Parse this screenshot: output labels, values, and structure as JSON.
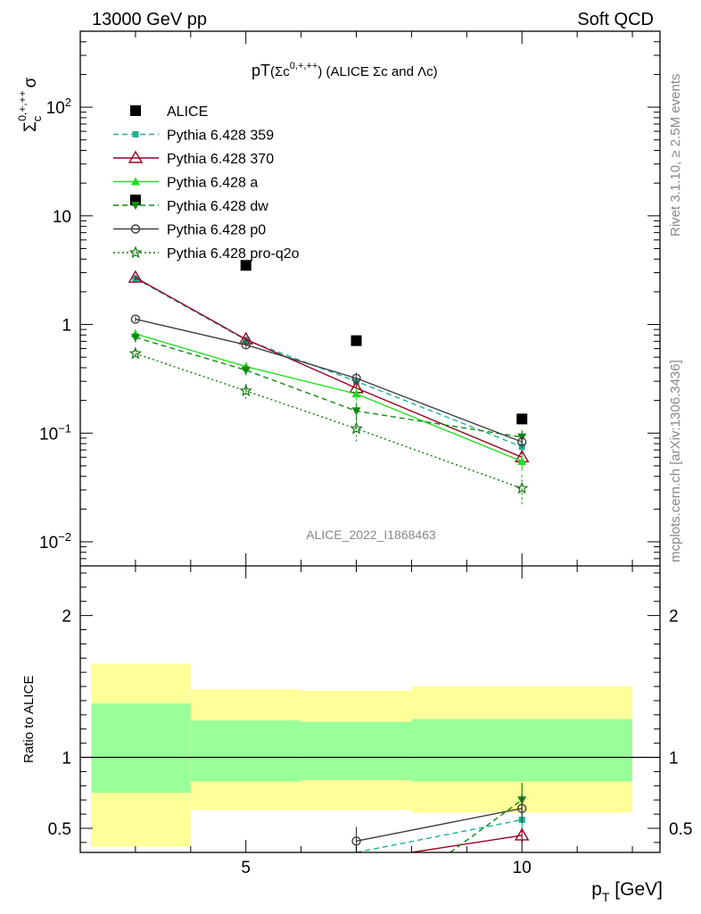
{
  "header": {
    "left": "13000 GeV pp",
    "right": "Soft QCD"
  },
  "side_labels": {
    "rivet": "Rivet 3.1.10, ≥ 2.5M events",
    "mcplots": "mcplots.cern.ch [arXiv:1306.3436]"
  },
  "chart_data": [
    {
      "type": "line",
      "title": "pT(Σc⁰¸⁺¸⁺⁺) (ALICE Σc and Λc)",
      "title_parts": {
        "main": "pT",
        "paren": "(Σc",
        "sup": "0,+,++",
        "rest": ") (ALICE Σc and Λc)"
      },
      "watermark": "ALICE_2022_I1868463",
      "ylabel": "Σc^{0,+,++} σ",
      "ylabel_parts": {
        "sym": "Σ",
        "sub": "c",
        "sup": "0,+,++",
        "post": "σ"
      },
      "xlabel": "",
      "yscale": "log",
      "xlim": [
        2,
        12.5
      ],
      "ylim": [
        0.006,
        500
      ],
      "yticks": [
        {
          "v": 0.01,
          "base": "10",
          "exp": "−2"
        },
        {
          "v": 0.1,
          "base": "10",
          "exp": "−1"
        },
        {
          "v": 1,
          "base": "1",
          "exp": ""
        },
        {
          "v": 10,
          "base": "10",
          "exp": ""
        },
        {
          "v": 100,
          "base": "10",
          "exp": "2"
        }
      ],
      "legend_position": "top-left",
      "series": [
        {
          "name": "ALICE",
          "color": "#000000",
          "marker": "square",
          "line": "none",
          "x": [
            3,
            5,
            7,
            10
          ],
          "y": [
            14,
            3.5,
            0.71,
            0.135
          ]
        },
        {
          "name": "Pythia 6.428 359",
          "color": "#1ab394",
          "marker": "small-square",
          "line": "dashed",
          "x": [
            3,
            5,
            7,
            10
          ],
          "y": [
            2.65,
            0.72,
            0.3,
            0.075
          ],
          "err": [
            0.15,
            0.04,
            0.03,
            0.01
          ]
        },
        {
          "name": "Pythia 6.428 370",
          "color": "#990022",
          "marker": "open-triangle",
          "line": "solid",
          "x": [
            3,
            5,
            7,
            10
          ],
          "y": [
            2.7,
            0.73,
            0.26,
            0.06
          ],
          "err": [
            0.15,
            0.04,
            0.03,
            0.01
          ]
        },
        {
          "name": "Pythia 6.428 a",
          "color": "#22dd22",
          "marker": "triangle",
          "line": "solid",
          "x": [
            3,
            5,
            7,
            10
          ],
          "y": [
            0.82,
            0.41,
            0.23,
            0.055
          ],
          "err": [
            0.08,
            0.04,
            0.03,
            0.01
          ]
        },
        {
          "name": "Pythia 6.428 dw",
          "color": "#118811",
          "marker": "down-triangle",
          "line": "dashed",
          "x": [
            3,
            5,
            7,
            10
          ],
          "y": [
            0.76,
            0.38,
            0.16,
            0.092
          ],
          "err": [
            0.08,
            0.04,
            0.03,
            0.015
          ]
        },
        {
          "name": "Pythia 6.428 p0",
          "color": "#404040",
          "marker": "open-circle",
          "line": "solid",
          "x": [
            3,
            5,
            7,
            10
          ],
          "y": [
            1.12,
            0.65,
            0.32,
            0.083
          ],
          "err": [
            0.06,
            0.04,
            0.04,
            0.01
          ]
        },
        {
          "name": "Pythia 6.428 pro-q2o",
          "color": "#117711",
          "marker": "open-star",
          "line": "dotted",
          "x": [
            3,
            5,
            7,
            10
          ],
          "y": [
            0.54,
            0.245,
            0.11,
            0.031
          ],
          "err": [
            0.05,
            0.04,
            0.03,
            0.01
          ]
        }
      ]
    },
    {
      "type": "line",
      "ylabel": "Ratio to ALICE",
      "xlabel": "p_T [GeV]",
      "xlabel_parts": {
        "p": "p",
        "sub": "T",
        "unit": " [GeV]"
      },
      "xlim": [
        2,
        12.5
      ],
      "ylim": [
        0.33,
        2.35
      ],
      "xticks": [
        {
          "v": 5,
          "label": "5"
        },
        {
          "v": 10,
          "label": "10"
        }
      ],
      "yticks": [
        {
          "v": 0.5,
          "label": "0.5"
        },
        {
          "v": 1,
          "label": "1"
        },
        {
          "v": 2,
          "label": "2"
        }
      ],
      "bands": [
        {
          "x0": 2.2,
          "x1": 4.0,
          "yellow": [
            0.37,
            1.66
          ],
          "green": [
            0.75,
            1.38
          ]
        },
        {
          "x0": 4.0,
          "x1": 6.0,
          "yellow": [
            0.63,
            1.48
          ],
          "green": [
            0.83,
            1.26
          ]
        },
        {
          "x0": 6.0,
          "x1": 8.0,
          "yellow": [
            0.63,
            1.47
          ],
          "green": [
            0.84,
            1.25
          ]
        },
        {
          "x0": 8.0,
          "x1": 12.0,
          "yellow": [
            0.61,
            1.5
          ],
          "green": [
            0.83,
            1.27
          ]
        }
      ],
      "series": [
        {
          "name": "Pythia 6.428 359",
          "x": [
            7,
            10
          ],
          "y": [
            0.33,
            0.56
          ],
          "err": [
            0.0,
            0.06
          ]
        },
        {
          "name": "Pythia 6.428 370",
          "x": [
            8,
            10
          ],
          "y": [
            0.33,
            0.45
          ],
          "err": [
            0.0,
            0.05
          ]
        },
        {
          "name": "Pythia 6.428 dw",
          "x": [
            8.7,
            10
          ],
          "y": [
            0.33,
            0.7
          ],
          "err": [
            0.0,
            0.12
          ]
        },
        {
          "name": "Pythia 6.428 p0",
          "x": [
            7,
            10
          ],
          "y": [
            0.41,
            0.64
          ],
          "err": [
            0.1,
            0.1
          ]
        }
      ]
    }
  ]
}
